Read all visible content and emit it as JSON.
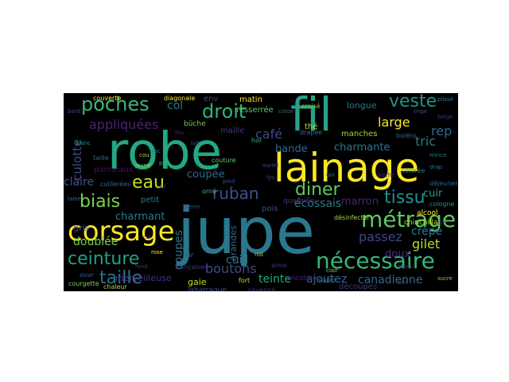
{
  "palette": {
    "background": "#000000",
    "yellow": "#fde725",
    "lightgreen": "#a0da39",
    "green": "#4ac16d",
    "teal": "#1fa187",
    "blue": "#277f8e",
    "slate": "#365c8d",
    "indigo": "#46327e",
    "purple": "#440154"
  },
  "words": [
    {
      "text": "jupe",
      "color": "#2a788e"
    },
    {
      "text": "robe",
      "color": "#22a884"
    },
    {
      "text": "fil",
      "color": "#2a9f89"
    },
    {
      "text": "lainage",
      "color": "#fde725"
    },
    {
      "text": "corsage",
      "color": "#fde725"
    },
    {
      "text": "métrage",
      "color": "#5ec962"
    },
    {
      "text": "nécessaire",
      "color": "#35b779"
    },
    {
      "text": "poches",
      "color": "#35b779"
    },
    {
      "text": "droit",
      "color": "#2fb47c"
    },
    {
      "text": "veste",
      "color": "#21918c"
    },
    {
      "text": "ceinture",
      "color": "#1fa187"
    },
    {
      "text": "taille",
      "color": "#2c728e"
    },
    {
      "text": "biais",
      "color": "#7ad151"
    },
    {
      "text": "eau",
      "color": "#c2df23"
    },
    {
      "text": "diner",
      "color": "#5ec962"
    },
    {
      "text": "tissu",
      "color": "#21918c"
    },
    {
      "text": "ruban",
      "color": "#3b528b"
    },
    {
      "text": "appliquées",
      "color": "#482475"
    },
    {
      "text": "culotte",
      "color": "#3e4989"
    },
    {
      "text": "rep",
      "color": "#31688e"
    },
    {
      "text": "large",
      "color": "#fde725"
    },
    {
      "text": "tric",
      "color": "#2a788e"
    },
    {
      "text": "café",
      "color": "#3e4989"
    },
    {
      "text": "col",
      "color": "#2a788e"
    },
    {
      "text": "gilet",
      "color": "#b5de2b"
    },
    {
      "text": "boutons",
      "color": "#3e4989"
    },
    {
      "text": "teinte",
      "color": "#22a884"
    },
    {
      "text": "ajoutez",
      "color": "#31688e"
    },
    {
      "text": "canadienne",
      "color": "#31688e"
    },
    {
      "text": "passez",
      "color": "#3e4989"
    },
    {
      "text": "écossais",
      "color": "#2a788e"
    },
    {
      "text": "doublée",
      "color": "#7ad151"
    },
    {
      "text": "charmant",
      "color": "#2a788e"
    },
    {
      "text": "charmante",
      "color": "#2a788e"
    },
    {
      "text": "bande",
      "color": "#31688e"
    },
    {
      "text": "crêpe",
      "color": "#2a788e"
    },
    {
      "text": "doux",
      "color": "#46327e"
    },
    {
      "text": "coupes",
      "color": "#2c728e"
    },
    {
      "text": "cuir",
      "color": "#1f9e89"
    },
    {
      "text": "claire",
      "color": "#3b528b"
    },
    {
      "text": "coupée",
      "color": "#31688e"
    },
    {
      "text": "marron",
      "color": "#482475"
    },
    {
      "text": "merveilleuse",
      "color": "#46327e"
    },
    {
      "text": "gaie",
      "color": "#c2df23"
    },
    {
      "text": "découpes",
      "color": "#46327e"
    },
    {
      "text": "satin",
      "color": "#31688e"
    },
    {
      "text": "labarraque",
      "color": "#3e4989"
    },
    {
      "text": "manches",
      "color": "#a0da39"
    },
    {
      "text": "longue",
      "color": "#2a788e"
    },
    {
      "text": "matin",
      "color": "#fde725"
    },
    {
      "text": "resserrée",
      "color": "#5ec962"
    },
    {
      "text": "croisé",
      "color": "#7ad151"
    },
    {
      "text": "thé",
      "color": "#b5de2b"
    },
    {
      "text": "env",
      "color": "#3e4989"
    },
    {
      "text": "maille",
      "color": "#46327e"
    },
    {
      "text": "gris",
      "color": "#3e4989"
    },
    {
      "text": "panneaux",
      "color": "#471063"
    },
    {
      "text": "petit",
      "color": "#2a788e"
    },
    {
      "text": "bûche",
      "color": "#7ad151"
    },
    {
      "text": "pois",
      "color": "#3e4989"
    },
    {
      "text": "quadrille",
      "color": "#46327e"
    },
    {
      "text": "grandes",
      "color": "#31688e"
    },
    {
      "text": "cuill",
      "color": "#2a788e"
    },
    {
      "text": "encolure",
      "color": "#482475"
    },
    {
      "text": "alcool",
      "color": "#fde725"
    },
    {
      "text": "chinchilla",
      "color": "#b5de2b"
    },
    {
      "text": "couverte",
      "color": "#fde725"
    },
    {
      "text": "diagonale",
      "color": "#fde725"
    },
    {
      "text": "taille",
      "color": "#31688e"
    },
    {
      "text": "ouvr",
      "color": "#31688e"
    },
    {
      "text": "cayenne",
      "color": "#46327e"
    },
    {
      "text": "françaises",
      "color": "#46327e"
    },
    {
      "text": "boléro",
      "color": "#31688e"
    },
    {
      "text": "désinfecter",
      "color": "#a0da39"
    },
    {
      "text": "cuillerées",
      "color": "#31688e"
    },
    {
      "text": "couture",
      "color": "#5ec962"
    },
    {
      "text": "orné",
      "color": "#35b779"
    },
    {
      "text": "drapée",
      "color": "#31688e"
    },
    {
      "text": "déjeuner",
      "color": "#31688e"
    },
    {
      "text": "colorée",
      "color": "#2a788e"
    },
    {
      "text": "courgette",
      "color": "#7ad151"
    },
    {
      "text": "cologne",
      "color": "#21918c"
    },
    {
      "text": "aime",
      "color": "#46327e"
    },
    {
      "text": "tar",
      "color": "#31688e"
    },
    {
      "text": "hor",
      "color": "#35b779"
    },
    {
      "text": "linge",
      "color": "#3e4989"
    },
    {
      "text": "beige",
      "color": "#46327e"
    },
    {
      "text": "fort",
      "color": "#b5de2b"
    },
    {
      "text": "sac",
      "color": "#2a788e"
    },
    {
      "text": "chaleur",
      "color": "#a0da39"
    },
    {
      "text": "pied",
      "color": "#3e4989"
    },
    {
      "text": "vif",
      "color": "#482475"
    },
    {
      "text": "lys",
      "color": "#3e4989"
    },
    {
      "text": "jaune",
      "color": "#7ad151"
    },
    {
      "text": "mince",
      "color": "#2a788e"
    },
    {
      "text": "ton",
      "color": "#482475"
    },
    {
      "text": "rose",
      "color": "#fde725"
    },
    {
      "text": "menu",
      "color": "#46327e"
    },
    {
      "text": "clair",
      "color": "#7ad151"
    },
    {
      "text": "plissé",
      "color": "#2a788e"
    },
    {
      "text": "nid",
      "color": "#a0da39"
    },
    {
      "text": "bord",
      "color": "#3e4989"
    },
    {
      "text": "fond",
      "color": "#46327e"
    },
    {
      "text": "drap",
      "color": "#2a788e"
    },
    {
      "text": "ourlet",
      "color": "#3e4989"
    },
    {
      "text": "pull",
      "color": "#35b779"
    },
    {
      "text": "laine",
      "color": "#31688e"
    },
    {
      "text": "poche",
      "color": "#46327e"
    },
    {
      "text": "sucre",
      "color": "#7ad151"
    },
    {
      "text": "feu",
      "color": "#482475"
    },
    {
      "text": "crème",
      "color": "#3e4989"
    },
    {
      "text": "uni",
      "color": "#2a788e"
    },
    {
      "text": "col",
      "color": "#46327e"
    },
    {
      "text": "coton",
      "color": "#31688e"
    },
    {
      "text": "cou",
      "color": "#a0da39"
    },
    {
      "text": "lait",
      "color": "#3e4989"
    },
    {
      "text": "fine",
      "color": "#46327e"
    },
    {
      "text": "blanc",
      "color": "#21918c"
    }
  ]
}
